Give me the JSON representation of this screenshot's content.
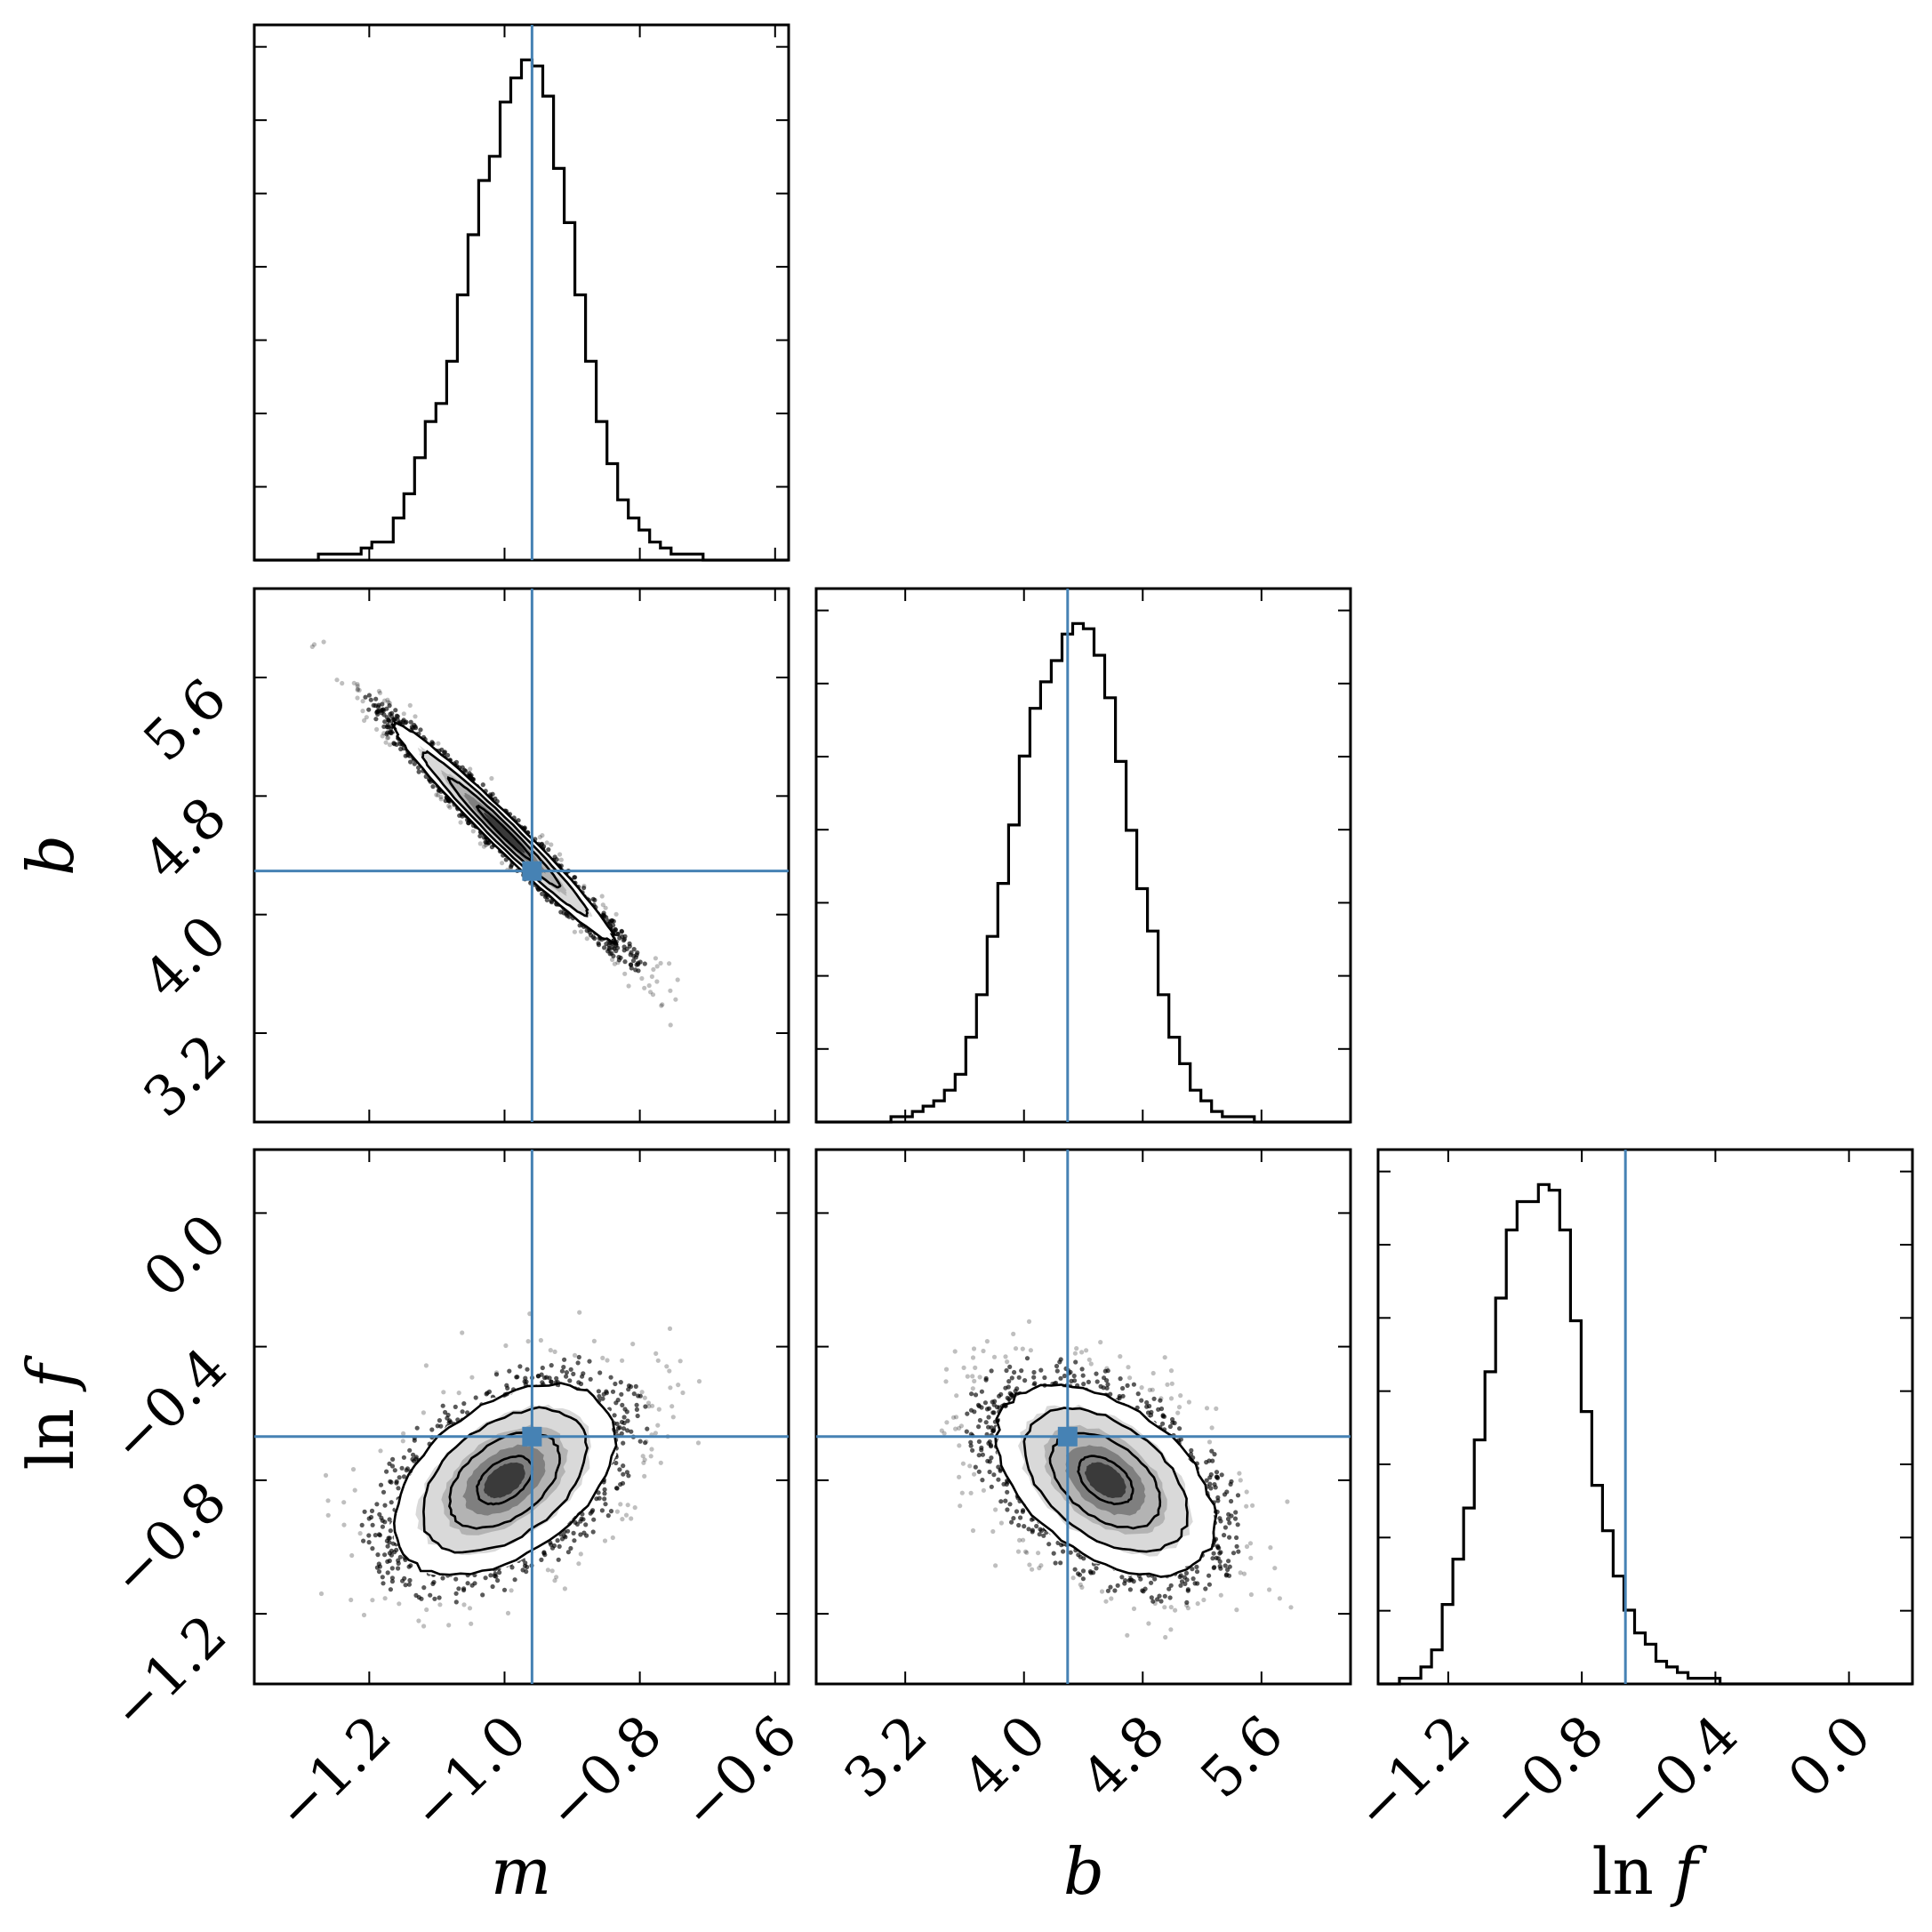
{
  "chart_data": {
    "type": "corner",
    "parameters": [
      "m",
      "b",
      "ln f"
    ],
    "axis_labels": {
      "m": {
        "math": "m"
      },
      "b": {
        "math": "b"
      },
      "lnf": {
        "prefix": "ln",
        "math": "f"
      }
    },
    "truths": {
      "m": -0.9594,
      "b": 4.294,
      "lnf": -0.6694
    },
    "ranges": {
      "m": [
        -1.37,
        -0.58
      ],
      "b": [
        2.6,
        6.2
      ],
      "lnf": [
        -1.41,
        0.19
      ]
    },
    "ticks": {
      "m": [
        {
          "v": -1.2,
          "label": "−1.2"
        },
        {
          "v": -1.0,
          "label": "−1.0"
        },
        {
          "v": -0.8,
          "label": "−0.8"
        },
        {
          "v": -0.6,
          "label": "−0.6"
        }
      ],
      "b": [
        {
          "v": 3.2,
          "label": "3.2"
        },
        {
          "v": 4.0,
          "label": "4.0"
        },
        {
          "v": 4.8,
          "label": "4.8"
        },
        {
          "v": 5.6,
          "label": "5.6"
        }
      ],
      "lnf": [
        {
          "v": -1.2,
          "label": "−1.2"
        },
        {
          "v": -0.8,
          "label": "−0.8"
        },
        {
          "v": -0.4,
          "label": "−0.4"
        },
        {
          "v": 0.0,
          "label": "0.0"
        }
      ]
    },
    "marginals": {
      "m": {
        "edges_start": -1.37,
        "bin_width": 0.0158,
        "counts": [
          0,
          0,
          0,
          0,
          0,
          0,
          1,
          1,
          1,
          1,
          2,
          3,
          3,
          7,
          11,
          17,
          23,
          26,
          33,
          44,
          54,
          63,
          67,
          76,
          80,
          83,
          82,
          77,
          65,
          56,
          44,
          33,
          23,
          16,
          10,
          7,
          5,
          3,
          2,
          1,
          1,
          1,
          0,
          0,
          0,
          0,
          0,
          0,
          0,
          0
        ]
      },
      "b": {
        "edges_start": 2.6,
        "bin_width": 0.072,
        "counts": [
          0,
          0,
          0,
          0,
          0,
          0,
          0,
          1,
          1,
          2,
          3,
          4,
          6,
          9,
          16,
          24,
          35,
          45,
          56,
          69,
          78,
          83,
          87,
          92,
          94,
          93,
          88,
          80,
          68,
          55,
          44,
          36,
          24,
          16,
          11,
          6,
          4,
          2,
          1,
          1,
          1,
          0,
          0,
          0,
          0,
          0,
          0,
          0,
          0,
          0
        ]
      },
      "lnf": {
        "edges_start": -1.41,
        "bin_width": 0.032,
        "counts": [
          0,
          0,
          1,
          1,
          3,
          6,
          14,
          22,
          31,
          43,
          55,
          68,
          80,
          85,
          85,
          88,
          87,
          80,
          64,
          48,
          35,
          27,
          19,
          13,
          9,
          7,
          4,
          3,
          2,
          1,
          1,
          1,
          0,
          0,
          0,
          0,
          0,
          0,
          0,
          0,
          0,
          0,
          0,
          0,
          0,
          0,
          0,
          0,
          0,
          0
        ]
      }
    },
    "joint": [
      {
        "x": "m",
        "y": "b",
        "mean": [
          -1.0,
          4.55
        ],
        "sd": [
          0.08,
          0.36
        ],
        "rho": -0.98,
        "contour_levels_sigma": [
          0.5,
          1.0,
          1.5,
          2.0
        ]
      },
      {
        "x": "m",
        "y": "lnf",
        "mean": [
          -1.0,
          -0.8
        ],
        "sd": [
          0.08,
          0.14
        ],
        "rho": 0.45,
        "contour_levels_sigma": [
          0.5,
          1.0,
          1.5,
          2.0
        ]
      },
      {
        "x": "b",
        "y": "lnf",
        "mean": [
          4.55,
          -0.8
        ],
        "sd": [
          0.36,
          0.14
        ],
        "rho": -0.45,
        "contour_levels_sigma": [
          0.5,
          1.0,
          1.5,
          2.0
        ]
      }
    ],
    "colors": {
      "truth": "#4682b4",
      "line": "#000000"
    },
    "grid": false,
    "legend": "none"
  }
}
